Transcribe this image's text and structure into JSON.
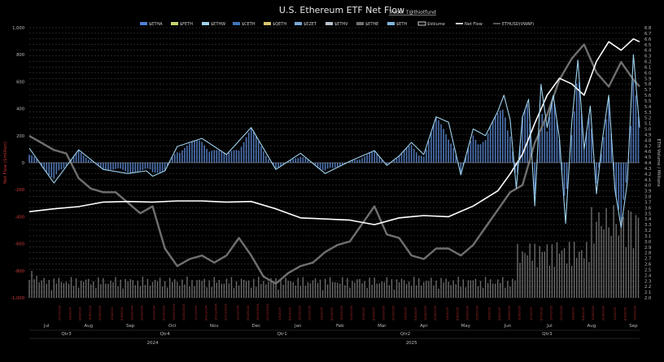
{
  "chart_data": {
    "type": "bar",
    "title": "U.S. Ethereum ETF Net Flow",
    "subtitle": "Trader T@thiotfund",
    "ylabel_left": "Net Flow ($million)",
    "ylabel_right": "ETH Volume / Millions",
    "ylim_left": [
      -1000,
      1000
    ],
    "ylim_right": [
      2.0,
      6.8
    ],
    "left_ticks": [
      "1,000",
      "800",
      "600",
      "400",
      "200",
      "0",
      "-200",
      "-400",
      "-600",
      "-800",
      "-1,000"
    ],
    "right_ticks": [
      "6.8",
      "6.7",
      "6.6",
      "6.5",
      "6.4",
      "6.3",
      "6.2",
      "6.1",
      "6.0",
      "5.9",
      "5.8",
      "5.7",
      "5.6",
      "5.5",
      "5.4",
      "5.3",
      "5.2",
      "5.1",
      "5.0",
      "4.9",
      "4.8",
      "4.7",
      "4.6",
      "4.5",
      "4.4",
      "4.3",
      "4.2",
      "4.1",
      "4.0",
      "3.9",
      "3.8",
      "3.7",
      "3.6",
      "3.5",
      "3.4",
      "3.3",
      "3.2",
      "3.1",
      "3.0",
      "2.9",
      "2.8",
      "2.7",
      "2.6",
      "2.5",
      "2.4",
      "2.3",
      "2.2",
      "2.1",
      "2.0"
    ],
    "legend": [
      "$ETHA",
      "$FETH",
      "$ETHW",
      "$CETH",
      "$QETH",
      "$EZET",
      "$ETHV",
      "$ETHE",
      "$ETH",
      "$Volume",
      "Net Flow",
      "ETHUSD(VWAP)"
    ],
    "legend_colors": [
      "#4f7fd6",
      "#c9d46a",
      "#9fd1ea",
      "#3f74b5",
      "#d7c46a",
      "#7aa8d8",
      "#b8c2cc",
      "#707070",
      "#7fb4d9",
      "#ffffff",
      "#ffffff",
      "#6a6a6a"
    ],
    "months": [
      "Jul",
      "Aug",
      "Sep",
      "Oct",
      "Nov",
      "Dec",
      "Jan",
      "Feb",
      "Mar",
      "Apr",
      "May",
      "Jun",
      "Jul",
      "Aug",
      "Sep"
    ],
    "quarters": [
      "Qtr3",
      "Qtr4",
      "Qtr1",
      "Qtr2",
      "Qtr3"
    ],
    "years": [
      "2024",
      "2025"
    ],
    "series": [
      {
        "name": "Net Flow",
        "x": [
          0,
          20,
          40,
          60,
          80,
          95,
          100,
          110,
          120,
          140,
          160,
          180,
          200,
          220,
          240,
          260,
          280,
          290,
          300,
          310,
          320,
          330,
          340,
          350,
          360,
          370,
          380,
          385,
          390,
          395,
          400,
          405,
          410,
          415,
          420,
          425,
          430,
          435,
          440,
          445,
          450,
          455,
          460,
          465,
          470,
          475,
          480,
          485,
          490,
          495
        ],
        "values": [
          107,
          -150,
          95,
          -50,
          -80,
          -60,
          -100,
          -60,
          120,
          180,
          60,
          260,
          -50,
          70,
          -80,
          10,
          90,
          -20,
          50,
          150,
          60,
          340,
          300,
          -90,
          250,
          200,
          380,
          500,
          320,
          -190,
          340,
          470,
          -320,
          580,
          260,
          500,
          180,
          -450,
          300,
          760,
          100,
          420,
          -230,
          180,
          500,
          -200,
          -480,
          -150,
          800,
          260
        ]
      },
      {
        "name": "ETH Volume",
        "x": [
          0,
          20,
          40,
          60,
          80,
          100,
          120,
          140,
          160,
          180,
          200,
          220,
          240,
          260,
          280,
          300,
          320,
          340,
          360,
          380,
          390,
          400,
          410,
          420,
          430,
          440,
          450,
          460,
          470,
          480,
          490,
          495
        ],
        "values": [
          3.53,
          3.58,
          3.62,
          3.7,
          3.71,
          3.7,
          3.72,
          3.72,
          3.7,
          3.71,
          3.58,
          3.42,
          3.4,
          3.38,
          3.3,
          3.42,
          3.46,
          3.44,
          3.63,
          3.9,
          4.2,
          4.55,
          5.1,
          5.6,
          5.9,
          5.8,
          5.6,
          6.2,
          6.55,
          6.4,
          6.6,
          6.55
        ]
      },
      {
        "name": "ETHUSD(VWAP)",
        "x": [
          0,
          10,
          20,
          30,
          40,
          50,
          60,
          70,
          80,
          90,
          100,
          110,
          120,
          130,
          140,
          150,
          160,
          170,
          180,
          190,
          200,
          210,
          220,
          230,
          240,
          250,
          260,
          270,
          280,
          290,
          300,
          310,
          320,
          330,
          340,
          350,
          360,
          370,
          380,
          390,
          400,
          410,
          420,
          430,
          440,
          450,
          460,
          470,
          480,
          490,
          495
        ],
        "values": [
          3400,
          3300,
          3200,
          3150,
          2800,
          2650,
          2600,
          2600,
          2450,
          2300,
          2400,
          1800,
          1550,
          1650,
          1700,
          1600,
          1700,
          1950,
          1700,
          1400,
          1300,
          1450,
          1550,
          1600,
          1750,
          1850,
          1900,
          2150,
          2400,
          2000,
          1950,
          1700,
          1650,
          1800,
          1800,
          1700,
          1850,
          2100,
          2350,
          2600,
          2700,
          3300,
          3700,
          4200,
          4500,
          4700,
          4300,
          4100,
          4450,
          4200,
          4100
        ]
      }
    ],
    "volume_bars_scale": "tall at Jul 2024 and Jul–Aug 2025"
  }
}
